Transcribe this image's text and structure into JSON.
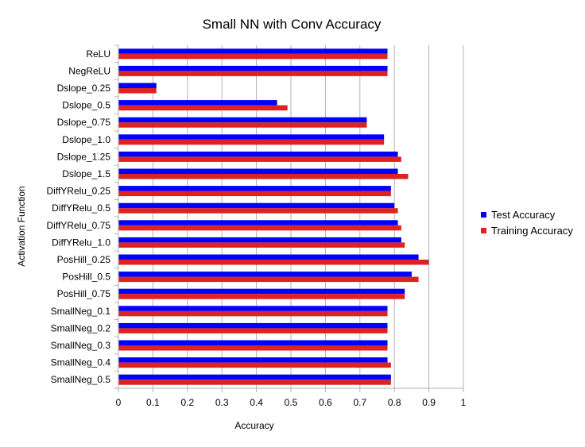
{
  "chart_data": {
    "type": "bar",
    "orientation": "horizontal",
    "title": "Small NN with Conv Accuracy",
    "xlabel": "Accuracy",
    "ylabel": "Activation Function",
    "xlim": [
      0,
      1
    ],
    "xticks": [
      0,
      0.1,
      0.2,
      0.3,
      0.4,
      0.5,
      0.6,
      0.7,
      0.8,
      0.9,
      1
    ],
    "xtick_labels": [
      "0",
      "0.1",
      "0.2",
      "0.3",
      "0.4",
      "0.5",
      "0.6",
      "0.7",
      "0.8",
      "0.9",
      "1"
    ],
    "grid": "vertical",
    "legend_position": "right",
    "categories": [
      "ReLU",
      "NegReLU",
      "Dslope_0.25",
      "Dslope_0.5",
      "Dslope_0.75",
      "Dslope_1.0",
      "Dslope_1.25",
      "Dslope_1.5",
      "DiffYRelu_0.25",
      "DiffYRelu_0.5",
      "DiffYRelu_0.75",
      "DiffYRelu_1.0",
      "PosHill_0.25",
      "PosHill_0.5",
      "PosHill_0.75",
      "SmallNeg_0.1",
      "SmallNeg_0.2",
      "SmallNeg_0.3",
      "SmallNeg_0.4",
      "SmallNeg_0.5"
    ],
    "series": [
      {
        "name": "Test Accuracy",
        "color": "#0000ff",
        "values": [
          0.78,
          0.78,
          0.11,
          0.46,
          0.72,
          0.77,
          0.81,
          0.81,
          0.79,
          0.8,
          0.81,
          0.82,
          0.87,
          0.85,
          0.83,
          0.78,
          0.78,
          0.78,
          0.78,
          0.79
        ]
      },
      {
        "name": "Training Accuracy",
        "color": "#dd2222",
        "values": [
          0.78,
          0.78,
          0.11,
          0.49,
          0.72,
          0.77,
          0.82,
          0.84,
          0.79,
          0.81,
          0.82,
          0.83,
          0.9,
          0.87,
          0.83,
          0.78,
          0.78,
          0.78,
          0.79,
          0.79
        ]
      }
    ]
  }
}
